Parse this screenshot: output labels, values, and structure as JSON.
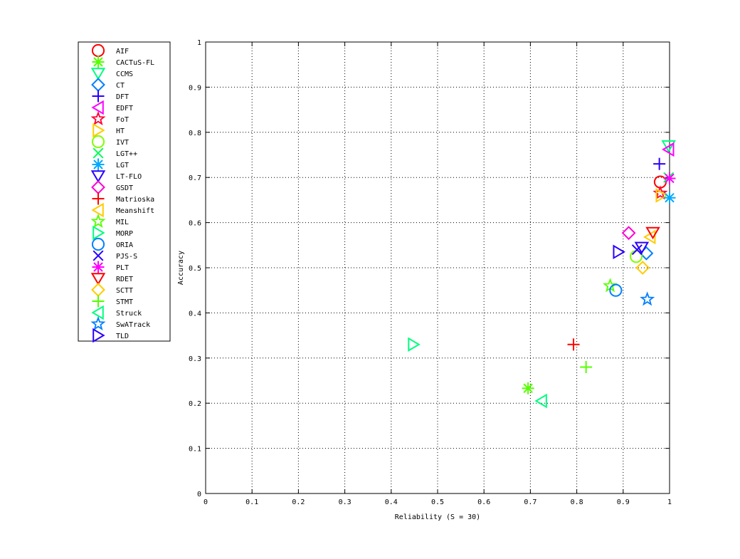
{
  "chart_data": {
    "type": "scatter",
    "title": "",
    "xlabel": "Reliability (S = 30)",
    "ylabel": "Accuracy",
    "xlim": [
      0,
      1
    ],
    "ylim": [
      0,
      1
    ],
    "xticks": [
      "0",
      "0.1",
      "0.2",
      "0.3",
      "0.4",
      "0.5",
      "0.6",
      "0.7",
      "0.8",
      "0.9",
      "1"
    ],
    "yticks": [
      "0",
      "0.1",
      "0.2",
      "0.3",
      "0.4",
      "0.5",
      "0.6",
      "0.7",
      "0.8",
      "0.9",
      "1"
    ],
    "grid": true,
    "legend_position": "outside-left",
    "series": [
      {
        "name": "AIF",
        "marker": "circle",
        "color": "#ff0000",
        "x": 0.98,
        "y": 0.69
      },
      {
        "name": "CACTuS-FL",
        "marker": "asterisk",
        "color": "#55ff00",
        "x": 0.695,
        "y": 0.233
      },
      {
        "name": "CCMS",
        "marker": "triangle-down",
        "color": "#00ff80",
        "x": 0.998,
        "y": 0.77
      },
      {
        "name": "CT",
        "marker": "diamond",
        "color": "#0080ff",
        "x": 0.95,
        "y": 0.532
      },
      {
        "name": "DFT",
        "marker": "plus",
        "color": "#2a00ff",
        "x": 0.978,
        "y": 0.73
      },
      {
        "name": "EDFT",
        "marker": "triangle-left",
        "color": "#ff00ff",
        "x": 0.998,
        "y": 0.762
      },
      {
        "name": "FoT",
        "marker": "pentagram",
        "color": "#ff0033",
        "x": 0.98,
        "y": 0.665
      },
      {
        "name": "HT",
        "marker": "triangle-right",
        "color": "#ffcc00",
        "x": 0.982,
        "y": 0.66
      },
      {
        "name": "IVT",
        "marker": "circle",
        "color": "#80ff00",
        "x": 0.928,
        "y": 0.525
      },
      {
        "name": "LGT++",
        "marker": "x",
        "color": "#00ff55",
        "x": 0.998,
        "y": 0.7
      },
      {
        "name": "LGT",
        "marker": "asterisk",
        "color": "#00aaff",
        "x": 1.0,
        "y": 0.655
      },
      {
        "name": "LT-FLO",
        "marker": "triangle-down",
        "color": "#2a00ff",
        "x": 0.94,
        "y": 0.545
      },
      {
        "name": "GSDT",
        "marker": "diamond",
        "color": "#ff00d4",
        "x": 0.912,
        "y": 0.577
      },
      {
        "name": "Matrioska",
        "marker": "plus",
        "color": "#ff0000",
        "x": 0.793,
        "y": 0.33
      },
      {
        "name": "Meanshift",
        "marker": "triangle-left",
        "color": "#ffcc00",
        "x": 0.958,
        "y": 0.568
      },
      {
        "name": "MIL",
        "marker": "pentagram",
        "color": "#55ff00",
        "x": 0.872,
        "y": 0.46
      },
      {
        "name": "MORP",
        "marker": "triangle-right",
        "color": "#00ff80",
        "x": 0.448,
        "y": 0.33
      },
      {
        "name": "ORIA",
        "marker": "circle",
        "color": "#0080ff",
        "x": 0.884,
        "y": 0.45
      },
      {
        "name": "PJS-S",
        "marker": "x",
        "color": "#2a00ff",
        "x": 0.93,
        "y": 0.54
      },
      {
        "name": "PLT",
        "marker": "asterisk",
        "color": "#ff00ff",
        "x": 1.0,
        "y": 0.698
      },
      {
        "name": "RDET",
        "marker": "triangle-down",
        "color": "#ff0000",
        "x": 0.964,
        "y": 0.578
      },
      {
        "name": "SCTT",
        "marker": "diamond",
        "color": "#ffcc00",
        "x": 0.942,
        "y": 0.5
      },
      {
        "name": "STMT",
        "marker": "plus",
        "color": "#55ff00",
        "x": 0.82,
        "y": 0.28
      },
      {
        "name": "Struck",
        "marker": "triangle-left",
        "color": "#00ff80",
        "x": 0.724,
        "y": 0.205
      },
      {
        "name": "SwATrack",
        "marker": "pentagram",
        "color": "#0080ff",
        "x": 0.952,
        "y": 0.43
      },
      {
        "name": "TLD",
        "marker": "triangle-right",
        "color": "#2a00ff",
        "x": 0.89,
        "y": 0.535
      }
    ]
  }
}
